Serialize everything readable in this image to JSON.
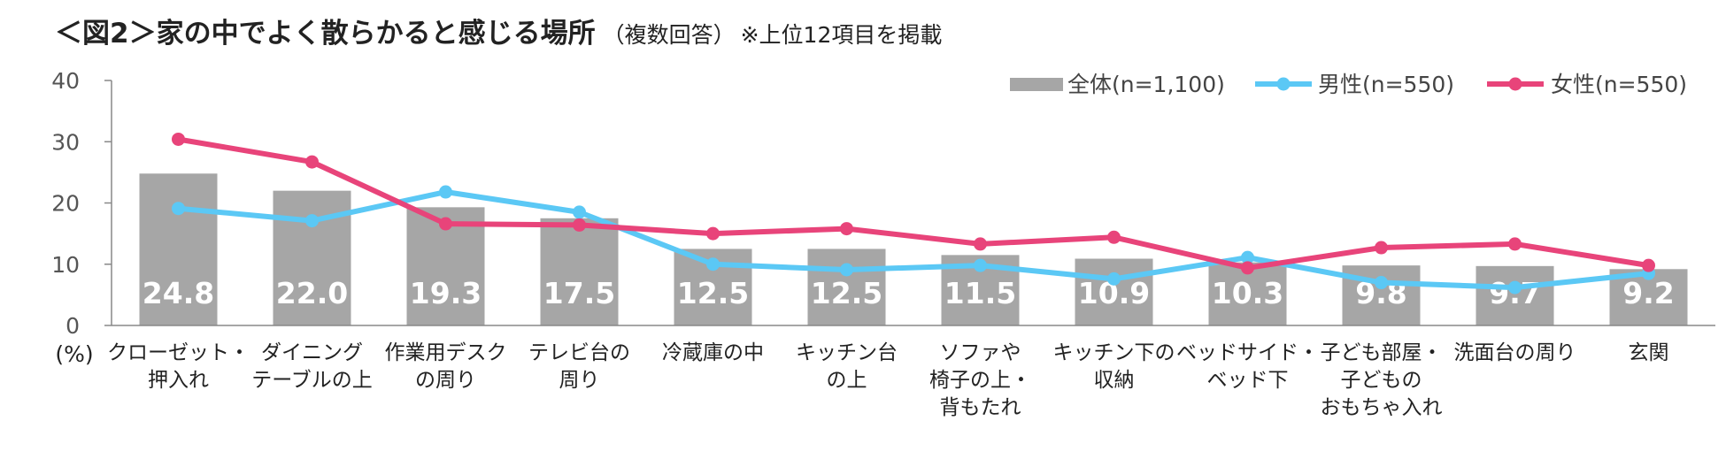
{
  "header": {
    "title": "＜図2＞家の中でよく散らかると感じる場所",
    "subtitle": "（複数回答）",
    "note": "※上位12項目を掲載"
  },
  "chart_data": {
    "type": "bar",
    "ylabel": "(%)",
    "ylim": [
      0,
      40
    ],
    "yticks": [
      0,
      10,
      20,
      30,
      40
    ],
    "grid": false,
    "legend_position": "top-right",
    "categories": [
      [
        "クローゼット・",
        "押入れ"
      ],
      [
        "ダイニング",
        "テーブルの上"
      ],
      [
        "作業用デスク",
        "の周り"
      ],
      [
        "テレビ台の",
        "周り"
      ],
      [
        "冷蔵庫の中"
      ],
      [
        "キッチン台",
        "の上"
      ],
      [
        "ソファや",
        "椅子の上・",
        "背もたれ"
      ],
      [
        "キッチン下の",
        "収納"
      ],
      [
        "ベッドサイド・",
        "ベッド下"
      ],
      [
        "子ども部屋・",
        "子どもの",
        "おもちゃ入れ"
      ],
      [
        "洗面台の周り"
      ],
      [
        "玄関"
      ]
    ],
    "series": [
      {
        "name": "全体(n=1,100)",
        "kind": "bar",
        "color": "#a6a6a6",
        "values": [
          24.8,
          22.0,
          19.3,
          17.5,
          12.5,
          12.5,
          11.5,
          10.9,
          10.3,
          9.8,
          9.7,
          9.2
        ],
        "labels": [
          "24.8",
          "22.0",
          "19.3",
          "17.5",
          "12.5",
          "12.5",
          "11.5",
          "10.9",
          "10.3",
          "9.8",
          "9.7",
          "9.2"
        ]
      },
      {
        "name": "男性(n=550)",
        "kind": "line",
        "color": "#5bc8f5",
        "values": [
          19.1,
          17.1,
          21.8,
          18.5,
          10.0,
          9.1,
          9.8,
          7.6,
          11.1,
          7.0,
          6.2,
          8.5
        ]
      },
      {
        "name": "女性(n=550)",
        "kind": "line",
        "color": "#e8447a",
        "values": [
          30.4,
          26.7,
          16.6,
          16.4,
          15.0,
          15.8,
          13.3,
          14.4,
          9.4,
          12.7,
          13.3,
          9.8
        ]
      }
    ]
  }
}
